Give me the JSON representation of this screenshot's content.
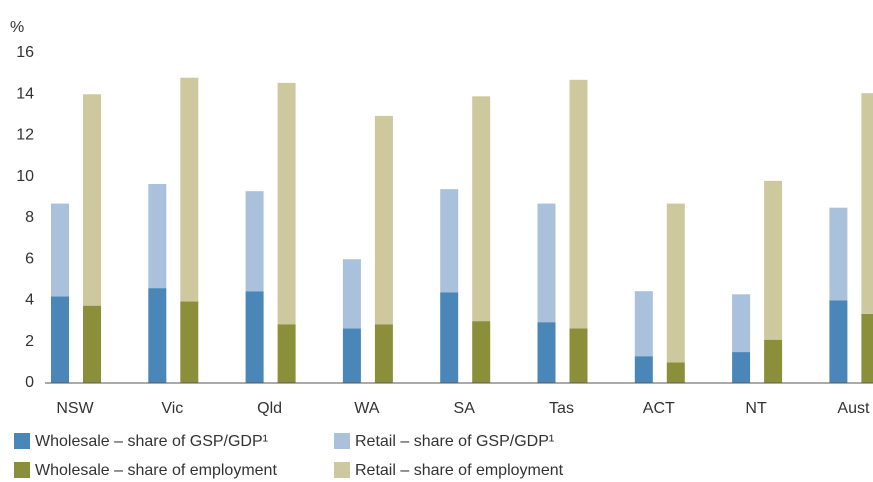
{
  "chart_data": {
    "type": "grouped_stacked_bar",
    "y_label": "%",
    "categories": [
      "NSW",
      "Vic",
      "Qld",
      "WA",
      "SA",
      "Tas",
      "ACT",
      "NT",
      "Aust"
    ],
    "series": [
      {
        "name": "Wholesale – share of GSP/GDP¹",
        "color": "#4a86b8",
        "stack": 0,
        "values": [
          4.2,
          4.6,
          4.45,
          2.65,
          4.4,
          2.95,
          1.3,
          1.5,
          4.0
        ]
      },
      {
        "name": "Retail – share of GSP/GDP¹",
        "color": "#a9c1da",
        "stack": 0,
        "values": [
          4.5,
          5.05,
          4.85,
          3.35,
          5.0,
          5.75,
          3.15,
          2.8,
          4.5
        ]
      },
      {
        "name": "Wholesale – share of employment",
        "color": "#8c8f3a",
        "stack": 1,
        "values": [
          3.75,
          3.95,
          2.85,
          2.85,
          3.0,
          2.65,
          1.0,
          2.1,
          3.35
        ]
      },
      {
        "name": "Retail – share of employment",
        "color": "#cdc89e",
        "stack": 1,
        "values": [
          10.25,
          10.85,
          11.7,
          10.1,
          10.9,
          12.05,
          7.7,
          7.7,
          10.7
        ]
      }
    ],
    "ylim": [
      0,
      16
    ],
    "yticks": [
      0,
      2,
      4,
      6,
      8,
      10,
      12,
      14,
      16
    ],
    "grid": false
  }
}
